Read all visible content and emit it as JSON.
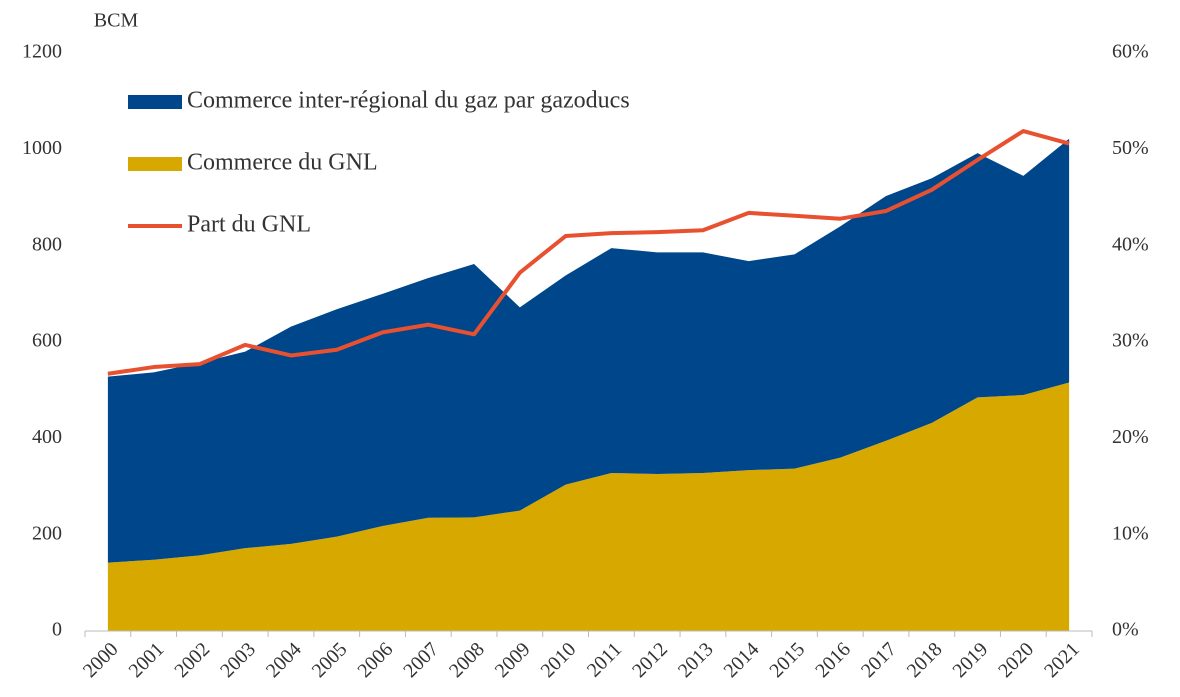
{
  "chart_data": {
    "type": "stacked_area_line",
    "y_label": "BCM",
    "categories": [
      "2000",
      "2001",
      "2002",
      "2003",
      "2004",
      "2005",
      "2006",
      "2007",
      "2008",
      "2009",
      "2010",
      "2011",
      "2012",
      "2013",
      "2014",
      "2015",
      "2016",
      "2017",
      "2018",
      "2019",
      "2020",
      "2021"
    ],
    "series": [
      {
        "name": "Commerce du GNL",
        "color": "#d6a800",
        "kind": "area",
        "values": [
          142,
          148,
          157,
          172,
          181,
          196,
          218,
          235,
          236,
          250,
          304,
          328,
          326,
          328,
          334,
          337,
          360,
          395,
          432,
          485,
          490,
          516
        ]
      },
      {
        "name": "Commerce inter-régional du gaz par gazoducs",
        "color": "#00468b",
        "kind": "area",
        "values": [
          386,
          389,
          400,
          408,
          451,
          472,
          482,
          498,
          526,
          422,
          434,
          467,
          460,
          458,
          434,
          445,
          480,
          508,
          508,
          507,
          455,
          506
        ]
      },
      {
        "name": "Part du GNL",
        "color": "#e8512f",
        "kind": "line",
        "axis": "y2",
        "values": [
          26.7,
          27.4,
          27.7,
          29.7,
          28.6,
          29.2,
          31.0,
          31.8,
          30.8,
          37.2,
          41.0,
          41.3,
          41.4,
          41.6,
          43.4,
          43.1,
          42.8,
          43.6,
          45.8,
          48.9,
          51.9,
          50.6
        ]
      }
    ],
    "legend_order": [
      1,
      0,
      2
    ],
    "ylim": [
      0,
      1200
    ],
    "yticks": [
      0,
      200,
      400,
      600,
      800,
      1000,
      1200
    ],
    "y2lim": [
      0,
      60
    ],
    "y2ticks": [
      {
        "value": 0,
        "label": "0%"
      },
      {
        "value": 10,
        "label": "10%"
      },
      {
        "value": 20,
        "label": "20%"
      },
      {
        "value": 30,
        "label": "30%"
      },
      {
        "value": 40,
        "label": "40%"
      },
      {
        "value": 50,
        "label": "50%"
      },
      {
        "value": 60,
        "label": "60%"
      }
    ],
    "grid": false
  }
}
